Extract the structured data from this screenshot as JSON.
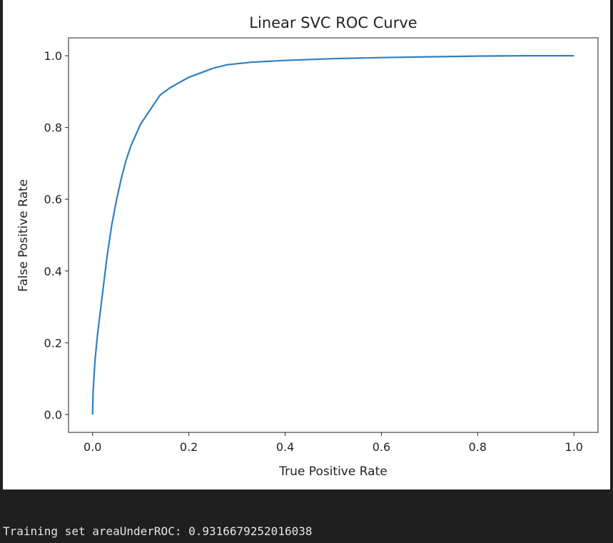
{
  "chart_data": {
    "type": "line",
    "title": "Linear SVC ROC Curve",
    "xlabel": "True Positive Rate",
    "ylabel": "False Positive Rate",
    "xlim": [
      -0.05,
      1.05
    ],
    "ylim": [
      -0.05,
      1.05
    ],
    "xticks": [
      "0.0",
      "0.2",
      "0.4",
      "0.6",
      "0.8",
      "1.0"
    ],
    "yticks": [
      "0.0",
      "0.2",
      "0.4",
      "0.6",
      "0.8",
      "1.0"
    ],
    "grid": false,
    "line_color": "#2f7fc1",
    "x": [
      0.0,
      0.001,
      0.005,
      0.01,
      0.02,
      0.03,
      0.04,
      0.05,
      0.06,
      0.07,
      0.08,
      0.1,
      0.12,
      0.14,
      0.16,
      0.18,
      0.2,
      0.22,
      0.25,
      0.28,
      0.33,
      0.4,
      0.5,
      0.6,
      0.7,
      0.8,
      0.9,
      1.0
    ],
    "y": [
      0.0,
      0.06,
      0.15,
      0.22,
      0.33,
      0.44,
      0.53,
      0.6,
      0.66,
      0.71,
      0.75,
      0.81,
      0.85,
      0.89,
      0.91,
      0.925,
      0.94,
      0.95,
      0.965,
      0.975,
      0.982,
      0.987,
      0.992,
      0.995,
      0.997,
      0.999,
      1.0,
      1.0
    ]
  },
  "output": {
    "text": "Training set areaUnderROC: 0.9316679252016038"
  }
}
